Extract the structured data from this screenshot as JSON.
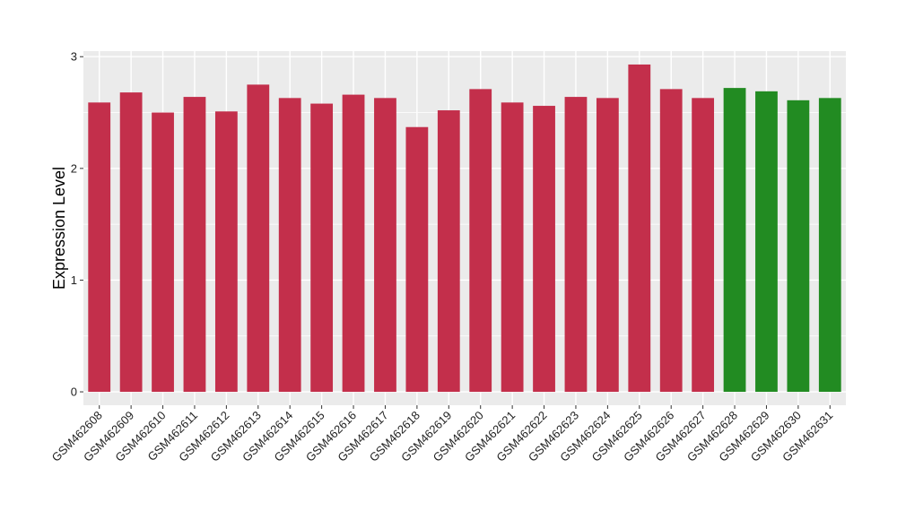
{
  "chart_data": {
    "type": "bar",
    "title": "",
    "xlabel": "",
    "ylabel": "Expression Level",
    "ylim": [
      -0.12,
      3.05
    ],
    "yticks": [
      0,
      1,
      2,
      3
    ],
    "grid": true,
    "legend": "none",
    "colors": {
      "group_a": "#c32f4b",
      "group_b": "#228b22",
      "panel": "#ebebeb",
      "grid": "#ffffff"
    },
    "categories": [
      "GSM462608",
      "GSM462609",
      "GSM462610",
      "GSM462611",
      "GSM462612",
      "GSM462613",
      "GSM462614",
      "GSM462615",
      "GSM462616",
      "GSM462617",
      "GSM462618",
      "GSM462619",
      "GSM462620",
      "GSM462621",
      "GSM462622",
      "GSM462623",
      "GSM462624",
      "GSM462625",
      "GSM462626",
      "GSM462627",
      "GSM462628",
      "GSM462629",
      "GSM462630",
      "GSM462631"
    ],
    "values": [
      2.59,
      2.68,
      2.5,
      2.64,
      2.51,
      2.75,
      2.63,
      2.58,
      2.66,
      2.63,
      2.37,
      2.52,
      2.71,
      2.59,
      2.56,
      2.64,
      2.63,
      2.93,
      2.71,
      2.63,
      2.72,
      2.69,
      2.61,
      2.63
    ],
    "groups": [
      "a",
      "a",
      "a",
      "a",
      "a",
      "a",
      "a",
      "a",
      "a",
      "a",
      "a",
      "a",
      "a",
      "a",
      "a",
      "a",
      "a",
      "a",
      "a",
      "a",
      "b",
      "b",
      "b",
      "b"
    ]
  }
}
